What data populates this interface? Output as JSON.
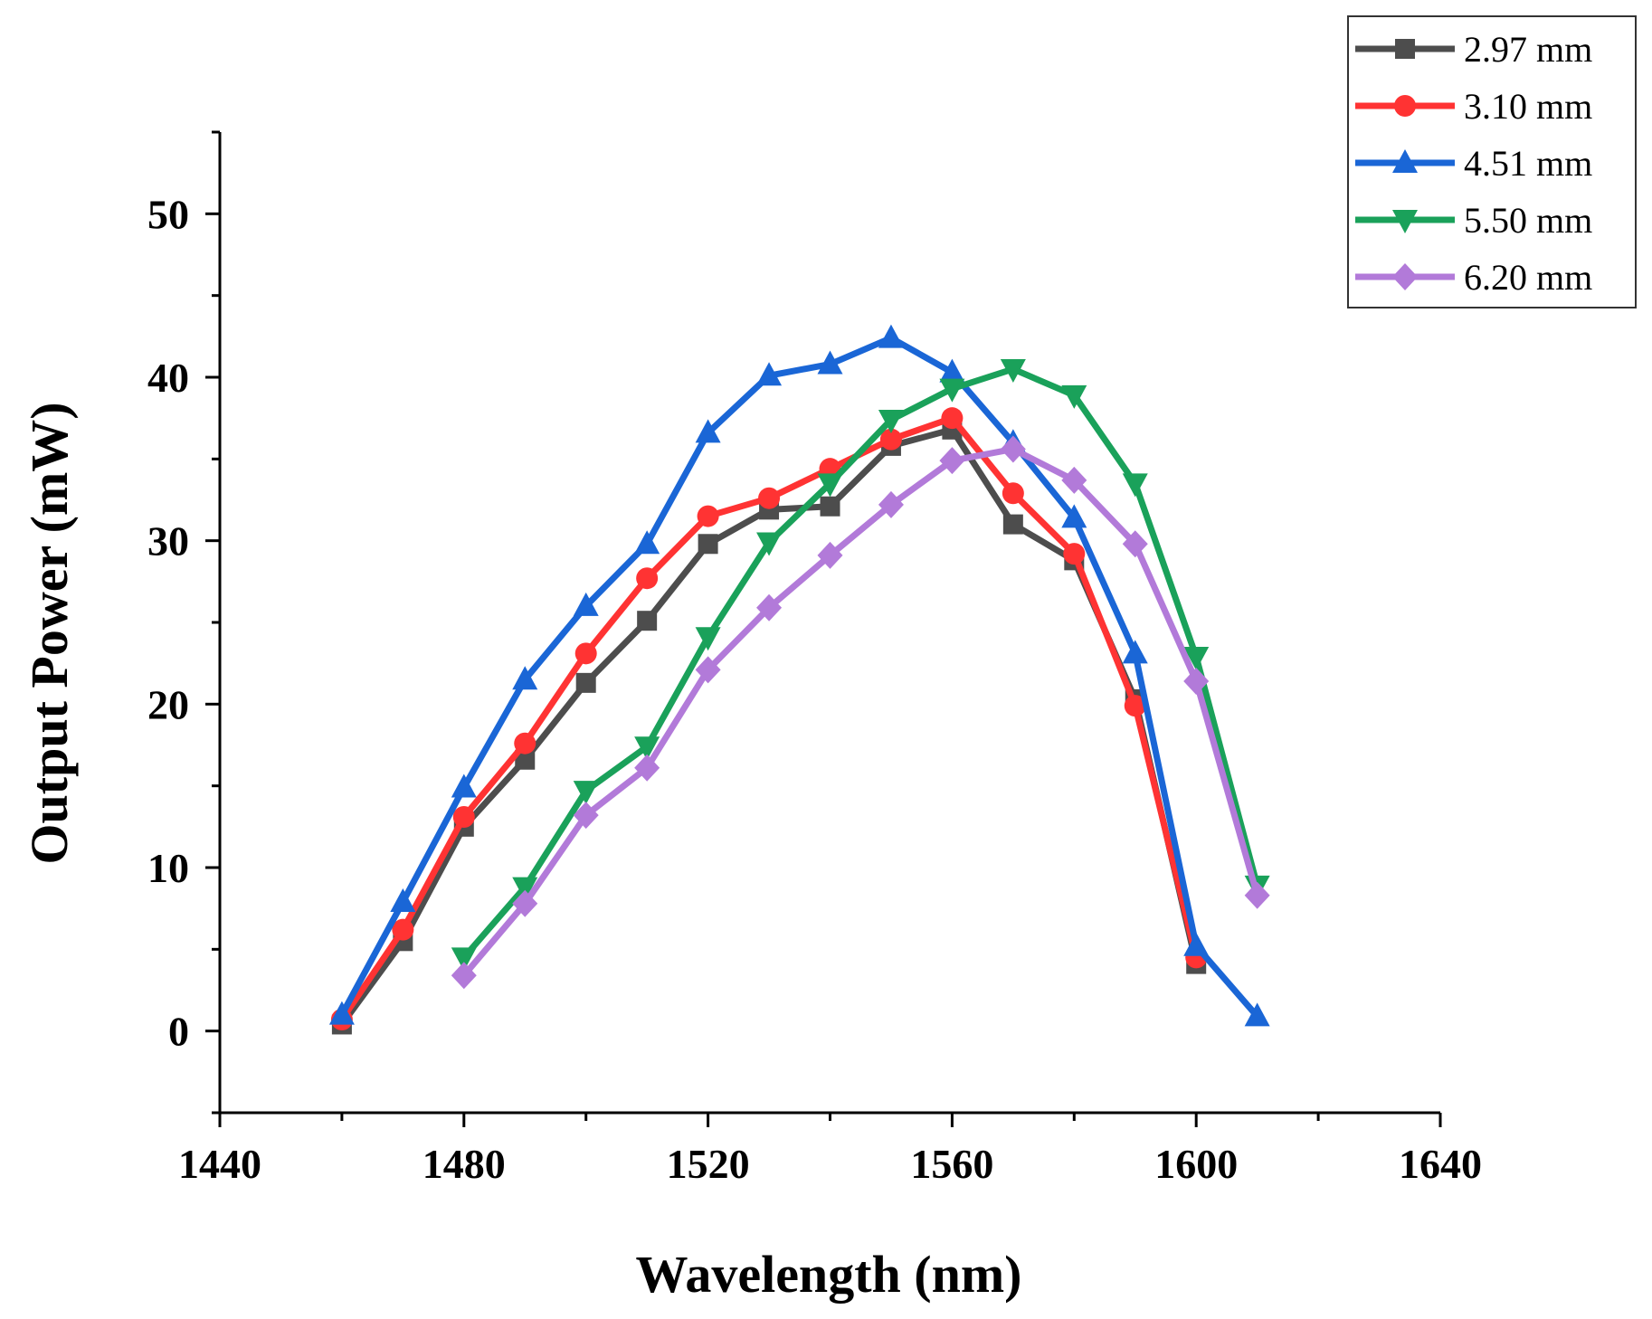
{
  "chart_data": {
    "type": "line",
    "title": "",
    "xlabel": "Wavelength (nm)",
    "ylabel": "Output Power (mW)",
    "xlim": [
      1440,
      1640
    ],
    "ylim": [
      -5,
      55
    ],
    "xticks": [
      1440,
      1480,
      1520,
      1560,
      1600,
      1640
    ],
    "yticks": [
      0,
      10,
      20,
      30,
      40,
      50
    ],
    "xtick_labels": [
      "1440",
      "1480",
      "1520",
      "1560",
      "1600",
      "1640"
    ],
    "ytick_labels": [
      "0",
      "10",
      "20",
      "30",
      "40",
      "50"
    ],
    "grid": false,
    "legend_position": "top-right",
    "series": [
      {
        "name": "2.97 mm",
        "color": "#4d4d4d",
        "marker": "square",
        "x": [
          1460,
          1470,
          1480,
          1490,
          1500,
          1510,
          1520,
          1530,
          1540,
          1550,
          1560,
          1570,
          1580,
          1590,
          1600
        ],
        "values": [
          0.4,
          5.5,
          12.5,
          16.6,
          21.3,
          25.1,
          29.8,
          31.9,
          32.1,
          35.8,
          36.8,
          31.0,
          28.8,
          20.3,
          4.1
        ]
      },
      {
        "name": "3.10 mm",
        "color": "#ff3333",
        "marker": "circle",
        "x": [
          1460,
          1470,
          1480,
          1490,
          1500,
          1510,
          1520,
          1530,
          1540,
          1550,
          1560,
          1570,
          1580,
          1590,
          1600
        ],
        "values": [
          0.7,
          6.2,
          13.1,
          17.6,
          23.1,
          27.7,
          31.5,
          32.6,
          34.4,
          36.2,
          37.5,
          32.9,
          29.2,
          19.9,
          4.5
        ]
      },
      {
        "name": "4.51 mm",
        "color": "#1a66d6",
        "marker": "triangle-up",
        "x": [
          1460,
          1470,
          1480,
          1490,
          1500,
          1510,
          1520,
          1530,
          1540,
          1550,
          1560,
          1570,
          1580,
          1590,
          1600,
          1610
        ],
        "values": [
          1.0,
          7.9,
          14.9,
          21.5,
          26.0,
          29.8,
          36.6,
          40.1,
          40.8,
          42.4,
          40.3,
          36.0,
          31.4,
          23.1,
          5.2,
          0.9
        ]
      },
      {
        "name": "5.50 mm",
        "color": "#1aa15a",
        "marker": "triangle-down",
        "x": [
          1480,
          1490,
          1500,
          1510,
          1520,
          1530,
          1540,
          1550,
          1560,
          1570,
          1580,
          1590,
          1600,
          1610
        ],
        "values": [
          4.5,
          8.8,
          14.7,
          17.4,
          24.1,
          29.9,
          33.5,
          37.4,
          39.3,
          40.5,
          38.9,
          33.5,
          22.9,
          8.9
        ]
      },
      {
        "name": "6.20 mm",
        "color": "#b27ad9",
        "marker": "diamond",
        "x": [
          1480,
          1490,
          1500,
          1510,
          1520,
          1530,
          1540,
          1550,
          1560,
          1570,
          1580,
          1590,
          1600,
          1610
        ],
        "values": [
          3.4,
          7.8,
          13.2,
          16.1,
          22.1,
          25.9,
          29.1,
          32.2,
          34.9,
          35.6,
          33.7,
          29.8,
          21.4,
          8.3
        ]
      }
    ]
  }
}
